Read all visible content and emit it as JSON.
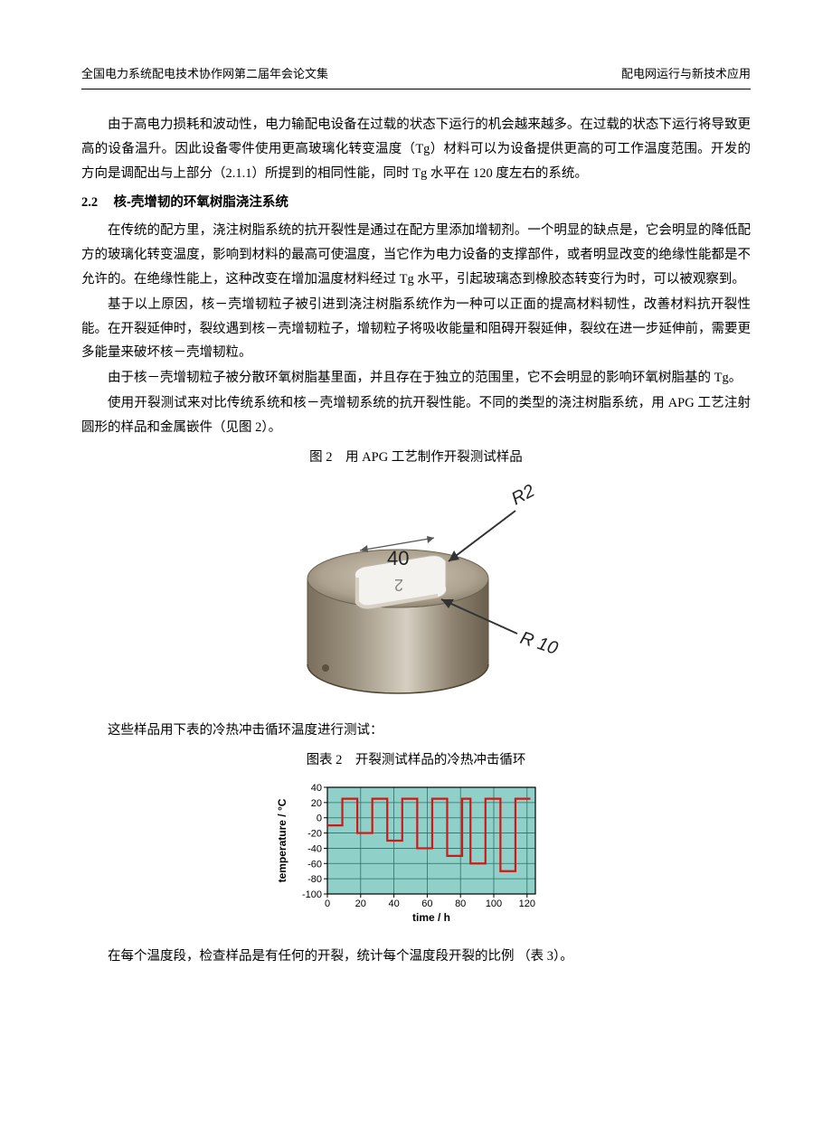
{
  "header": {
    "left": "全国电力系统配电技术协作网第二届年会论文集",
    "right": "配电网运行与新技术应用"
  },
  "p1": "由于高电力损耗和波动性，电力输配电设备在过载的状态下运行的机会越来越多。在过载的状态下运行将导致更高的设备温升。因此设备零件使用更高玻璃化转变温度（Tg）材料可以为设备提供更高的可工作温度范围。开发的方向是调配出与上部分（2.1.1）所提到的相同性能，同时 Tg 水平在 120 度左右的系统。",
  "section": {
    "num": "2.2",
    "title": "核-壳增韧的环氧树脂浇注系统"
  },
  "p2": "在传统的配方里，浇注树脂系统的抗开裂性是通过在配方里添加增韧剂。一个明显的缺点是，它会明显的降低配方的玻璃化转变温度，影响到材料的最高可使温度，当它作为电力设备的支撑部件，或者明显改变的绝缘性能都是不允许的。在绝缘性能上，这种改变在增加温度材料经过 Tg 水平，引起玻璃态到橡胶态转变行为时，可以被观察到。",
  "p3": "基于以上原因，核－壳增韧粒子被引进到浇注树脂系统作为一种可以正面的提高材料韧性，改善材料抗开裂性能。在开裂延伸时，裂纹遇到核－壳增韧粒子，增韧粒子将吸收能量和阻碍开裂延伸，裂纹在进一步延伸前，需要更多能量来破坏核－壳增韧粒。",
  "p4": "由于核－壳增韧粒子被分散环氧树脂基里面，并且存在于独立的范围里，它不会明显的影响环氧树脂基的 Tg。",
  "p5": "使用开裂测试来对比传统系统和核－壳增韧系统的抗开裂性能。不同的类型的浇注树脂系统，用 APG 工艺注射圆形的样品和金属嵌件（见图 2）。",
  "fig2_caption": "图 2　用 APG 工艺制作开裂测试样品",
  "fig2": {
    "r2_label": "R2",
    "r10_label": "R 10",
    "width_label": "40",
    "depth_label": "2",
    "cylinder_top_fill": "#b0a696",
    "cylinder_side_fill": "#8e8370",
    "cylinder_rim": "#6e6454",
    "insert_fill": "#f5f5f3",
    "insert_shadow": "#d4cfc5",
    "arrow_color": "#333333"
  },
  "p6": "这些样品用下表的冷热冲击循环温度进行测试：",
  "chart2_caption": "图表 2　开裂测试样品的冷热冲击循环",
  "chart2": {
    "type": "line-step",
    "x_label": "time / h",
    "y_label": "temperature / °C",
    "x_ticks": [
      0,
      20,
      40,
      60,
      80,
      100,
      120
    ],
    "y_ticks": [
      -100,
      -80,
      -60,
      -40,
      -20,
      0,
      20,
      40
    ],
    "xlim": [
      0,
      125
    ],
    "ylim": [
      -100,
      40
    ],
    "background_color": "#8fd1c9",
    "grid_color": "#2e6e67",
    "line_color": "#d01818",
    "line_width": 2.2,
    "points": [
      [
        0,
        -10
      ],
      [
        9,
        -10
      ],
      [
        9,
        25
      ],
      [
        18,
        25
      ],
      [
        18,
        -20
      ],
      [
        27,
        -20
      ],
      [
        27,
        25
      ],
      [
        36,
        25
      ],
      [
        36,
        -30
      ],
      [
        45,
        -30
      ],
      [
        45,
        25
      ],
      [
        54,
        25
      ],
      [
        54,
        -40
      ],
      [
        63,
        -40
      ],
      [
        63,
        25
      ],
      [
        72,
        25
      ],
      [
        72,
        -50
      ],
      [
        81,
        -50
      ],
      [
        81,
        25
      ],
      [
        86,
        25
      ],
      [
        86,
        -60
      ],
      [
        95,
        -60
      ],
      [
        95,
        25
      ],
      [
        104,
        25
      ],
      [
        104,
        -70
      ],
      [
        113,
        -70
      ],
      [
        113,
        25
      ],
      [
        122,
        25
      ]
    ]
  },
  "p7": "在每个温度段，检查样品是有任何的开裂，统计每个温度段开裂的比例 （表 3）。"
}
